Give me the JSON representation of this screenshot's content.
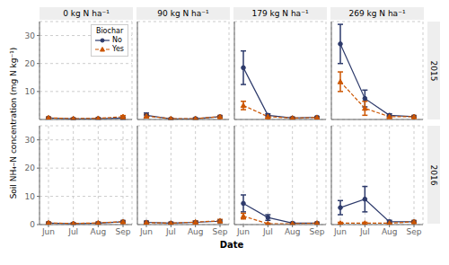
{
  "chart_data": {
    "type": "line",
    "xlabel": "Date",
    "ylabel": "Soil NH₄–N concentration (mg N kg⁻¹)",
    "legend_title": "Biochar",
    "legend": "upper right",
    "grid": true,
    "categories": [
      "Jun",
      "Jul",
      "Aug",
      "Sep"
    ],
    "ylim": [
      0,
      35
    ],
    "yticks": [
      0,
      10,
      20,
      30
    ],
    "columns": [
      "0 kg N ha⁻¹",
      "90 kg N ha⁻¹",
      "179 kg N ha⁻¹",
      "269 kg N ha⁻¹"
    ],
    "rows": [
      "2015",
      "2016"
    ],
    "series": [
      {
        "name": "No",
        "color": "#2d3a6b",
        "marker": "circle",
        "line_style": "solid"
      },
      {
        "name": "Yes",
        "color": "#cc5500",
        "marker": "triangle",
        "line_style": "dashed"
      }
    ],
    "panels": [
      [
        [
          {
            "values": [
              0.5,
              0.2,
              0.3,
              0.5
            ],
            "error": [
              0.3,
              0.2,
              0.2,
              0.4
            ]
          },
          {
            "values": [
              0.6,
              0.3,
              0.4,
              1.0
            ],
            "error": [
              0.3,
              0.2,
              0.2,
              0.4
            ]
          }
        ],
        [
          {
            "values": [
              1.5,
              0.2,
              0.3,
              1.0
            ],
            "error": [
              0.8,
              0.2,
              0.2,
              0.4
            ]
          },
          {
            "values": [
              1.2,
              0.3,
              0.3,
              1.0
            ],
            "error": [
              0.6,
              0.2,
              0.2,
              0.4
            ]
          }
        ],
        [
          {
            "values": [
              18.5,
              1.5,
              0.5,
              0.8
            ],
            "error": [
              6.0,
              0.5,
              0.3,
              0.3
            ]
          },
          {
            "values": [
              5.0,
              1.0,
              0.5,
              0.7
            ],
            "error": [
              1.5,
              0.5,
              0.3,
              0.3
            ]
          }
        ],
        [
          {
            "values": [
              27.0,
              7.5,
              1.5,
              1.0
            ],
            "error": [
              7.0,
              3.0,
              0.5,
              0.4
            ]
          },
          {
            "values": [
              13.5,
              4.0,
              1.0,
              1.0
            ],
            "error": [
              3.5,
              2.5,
              0.4,
              0.4
            ]
          }
        ]
      ],
      [
        [
          {
            "values": [
              0.5,
              0.3,
              0.5,
              1.0
            ],
            "error": [
              0.3,
              0.2,
              0.3,
              0.4
            ]
          },
          {
            "values": [
              0.6,
              0.4,
              0.6,
              1.0
            ],
            "error": [
              0.3,
              0.2,
              0.3,
              0.4
            ]
          }
        ],
        [
          {
            "values": [
              0.8,
              0.5,
              0.8,
              1.2
            ],
            "error": [
              0.4,
              0.3,
              0.4,
              0.5
            ]
          },
          {
            "values": [
              0.7,
              0.5,
              0.9,
              1.3
            ],
            "error": [
              0.4,
              0.3,
              0.4,
              0.5
            ]
          }
        ],
        [
          {
            "values": [
              7.5,
              2.5,
              0.5,
              0.5
            ],
            "error": [
              3.0,
              1.0,
              0.3,
              0.3
            ]
          },
          {
            "values": [
              3.0,
              0.3,
              0.3,
              0.5
            ],
            "error": [
              1.0,
              0.2,
              0.2,
              0.3
            ]
          }
        ],
        [
          {
            "values": [
              6.0,
              9.0,
              1.0,
              1.0
            ],
            "error": [
              2.5,
              4.5,
              0.5,
              0.4
            ]
          },
          {
            "values": [
              0.5,
              0.5,
              0.5,
              1.0
            ],
            "error": [
              0.3,
              0.3,
              0.3,
              0.4
            ]
          }
        ]
      ]
    ]
  }
}
